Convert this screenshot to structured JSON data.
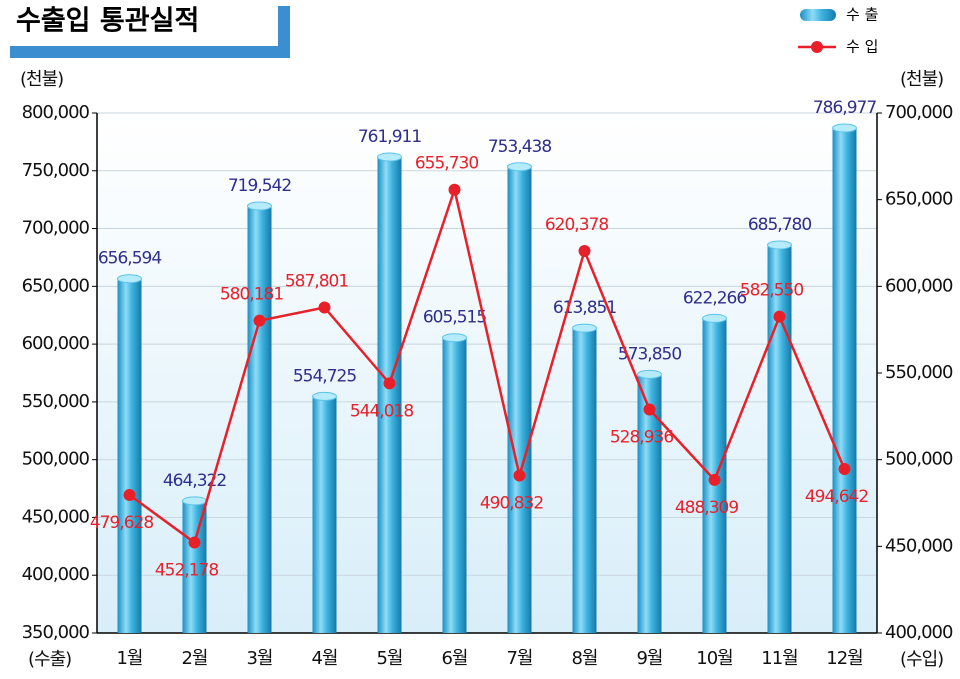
{
  "chart_data": {
    "type": "bar-line",
    "title": "수출입 통관실적",
    "y_unit": "(천불)",
    "y2_unit": "(천불)",
    "y_axis_label": "(수출)",
    "y2_axis_label": "(수입)",
    "categories": [
      "1월",
      "2월",
      "3월",
      "4월",
      "5월",
      "6월",
      "7월",
      "8월",
      "9월",
      "10월",
      "11월",
      "12월"
    ],
    "series": [
      {
        "name": "수 출",
        "type": "bar",
        "color": "#3fb4e0",
        "axis": "y",
        "values": [
          656594,
          464322,
          719542,
          554725,
          761911,
          605515,
          753438,
          613851,
          573850,
          622266,
          685780,
          786977
        ],
        "value_labels": [
          "656,594",
          "464,322",
          "719,542",
          "554,725",
          "761,911",
          "605,515",
          "753,438",
          "613,851",
          "573,850",
          "622,266",
          "685,780",
          "786,977"
        ]
      },
      {
        "name": "수 입",
        "type": "line",
        "color": "#e8202a",
        "axis": "y2",
        "values": [
          479628,
          452178,
          580181,
          587801,
          544018,
          655730,
          490832,
          620378,
          528936,
          488309,
          582550,
          494642
        ],
        "value_labels": [
          "479,628",
          "452,178",
          "580,181",
          "587,801",
          "544,018",
          "655,730",
          "490,832",
          "620,378",
          "528,936",
          "488,309",
          "582,550",
          "494,642"
        ]
      }
    ],
    "ylim": [
      350000,
      800000
    ],
    "yticks": [
      {
        "value": 350000,
        "label": "350,000"
      },
      {
        "value": 400000,
        "label": "400,000"
      },
      {
        "value": 450000,
        "label": "450,000"
      },
      {
        "value": 500000,
        "label": "500,000"
      },
      {
        "value": 550000,
        "label": "550,000"
      },
      {
        "value": 600000,
        "label": "600,000"
      },
      {
        "value": 650000,
        "label": "650,000"
      },
      {
        "value": 700000,
        "label": "700,000"
      },
      {
        "value": 750000,
        "label": "750,000"
      },
      {
        "value": 800000,
        "label": "800,000"
      }
    ],
    "y2lim": [
      400000,
      700000
    ],
    "y2ticks": [
      {
        "value": 400000,
        "label": "400,000"
      },
      {
        "value": 450000,
        "label": "450,000"
      },
      {
        "value": 500000,
        "label": "500,000"
      },
      {
        "value": 550000,
        "label": "550,000"
      },
      {
        "value": 600000,
        "label": "600,000"
      },
      {
        "value": 650000,
        "label": "650,000"
      },
      {
        "value": 700000,
        "label": "700,000"
      }
    ],
    "grid": true,
    "legend": "top-right"
  }
}
